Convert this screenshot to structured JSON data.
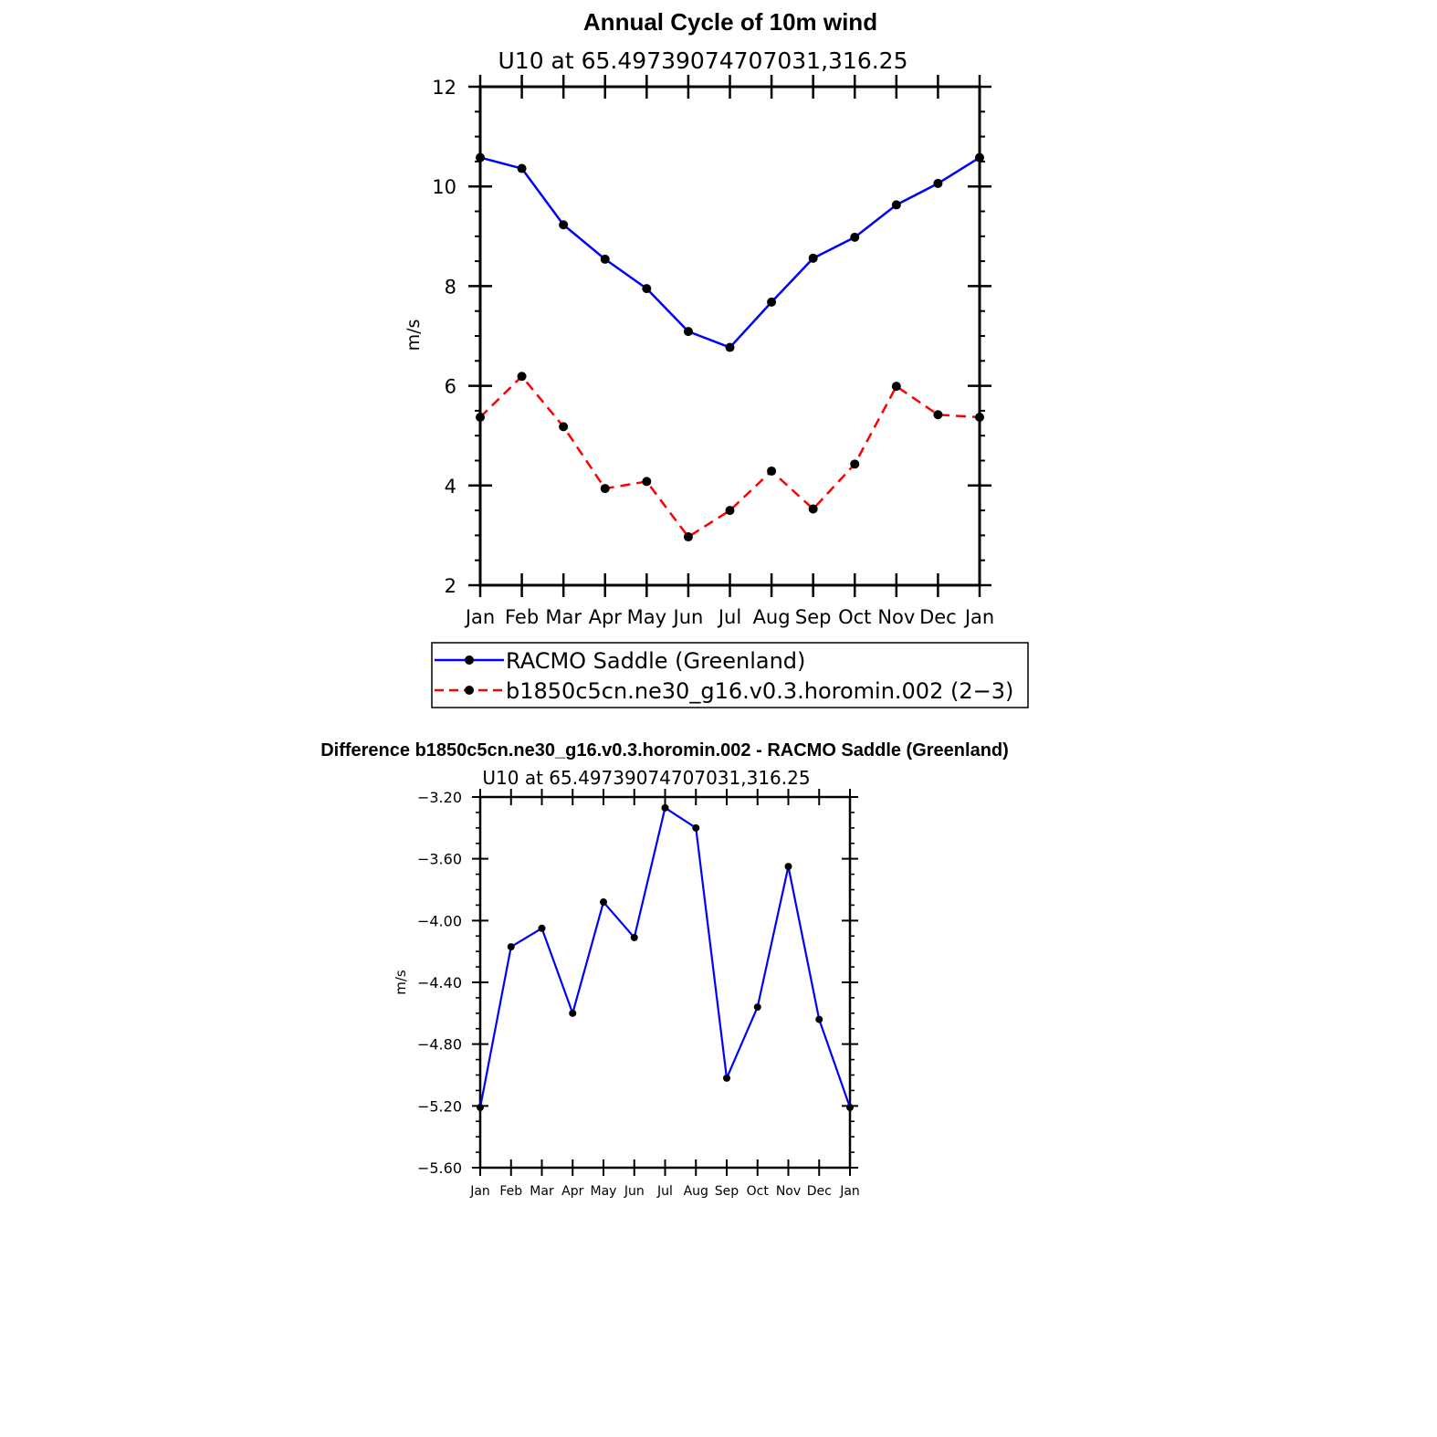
{
  "chart_data": [
    {
      "type": "line",
      "title": "Annual Cycle of 10m wind",
      "subtitle": "U10  at  65.49739074707031,316.25",
      "xlabel": "",
      "ylabel": "m/s",
      "ylim": [
        2,
        12
      ],
      "yticks": [
        "2",
        "4",
        "6",
        "8",
        "10",
        "12"
      ],
      "categories": [
        "Jan",
        "Feb",
        "Mar",
        "Apr",
        "May",
        "Jun",
        "Jul",
        "Aug",
        "Sep",
        "Oct",
        "Nov",
        "Dec",
        "Jan"
      ],
      "series": [
        {
          "name": "RACMO Saddle (Greenland)",
          "color": "#0000ff",
          "dash": "solid",
          "values": [
            10.58,
            10.36,
            9.23,
            8.54,
            7.95,
            7.09,
            6.77,
            7.68,
            8.56,
            8.98,
            9.63,
            10.06,
            10.58
          ]
        },
        {
          "name": "b1850c5cn.ne30_g16.v0.3.horomin.002 (2−3)",
          "color": "#ff0000",
          "dash": "dashed",
          "values": [
            5.37,
            6.19,
            5.18,
            3.94,
            4.08,
            2.97,
            3.5,
            4.29,
            3.53,
            4.43,
            5.99,
            5.42,
            5.37
          ]
        }
      ],
      "legend": "below"
    },
    {
      "type": "line",
      "title": "Difference b1850c5cn.ne30_g16.v0.3.horomin.002 - RACMO Saddle (Greenland)",
      "subtitle": "U10  at  65.49739074707031,316.25",
      "xlabel": "",
      "ylabel": "m/s",
      "ylim": [
        -5.6,
        -3.2
      ],
      "yticks": [
        "−5.60",
        "−5.20",
        "−4.80",
        "−4.40",
        "−4.00",
        "−3.60",
        "−3.20"
      ],
      "categories": [
        "Jan",
        "Feb",
        "Mar",
        "Apr",
        "May",
        "Jun",
        "Jul",
        "Aug",
        "Sep",
        "Oct",
        "Nov",
        "Dec",
        "Jan"
      ],
      "series": [
        {
          "name": "Difference",
          "color": "#0000ff",
          "dash": "solid",
          "values": [
            -5.21,
            -4.17,
            -4.05,
            -4.6,
            -3.88,
            -4.11,
            -3.27,
            -3.4,
            -5.02,
            -4.56,
            -3.65,
            -4.64,
            -5.21
          ]
        }
      ]
    }
  ]
}
